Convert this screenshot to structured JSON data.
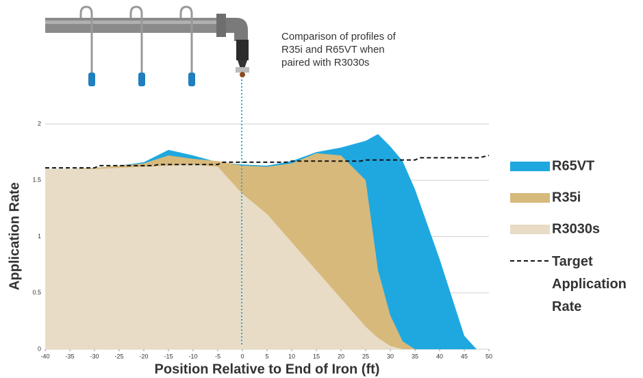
{
  "chart_data": {
    "type": "area",
    "annotation": "Comparison of profiles of R35i and R65VT when paired with R3030s",
    "x_label": "Position Relative to End of Iron (ft)",
    "y_label": "Application Rate",
    "x": [
      -40,
      -35,
      -30,
      -25,
      -20,
      -15,
      -10,
      -5,
      0,
      5,
      10,
      15,
      20,
      25,
      27.5,
      30,
      32.5,
      35,
      40,
      45,
      47.5
    ],
    "series": [
      {
        "name": "R65VT",
        "color": "#1fa8e0",
        "values": [
          1.6,
          1.6,
          1.61,
          1.63,
          1.66,
          1.77,
          1.72,
          1.66,
          1.64,
          1.63,
          1.67,
          1.75,
          1.79,
          1.85,
          1.91,
          1.8,
          1.67,
          1.42,
          0.8,
          0.12,
          0
        ]
      },
      {
        "name": "R35i",
        "color": "#d7b97b",
        "values": [
          1.6,
          1.6,
          1.61,
          1.63,
          1.65,
          1.72,
          1.69,
          1.67,
          1.63,
          1.62,
          1.65,
          1.74,
          1.72,
          1.5,
          0.7,
          0.3,
          0.07,
          0,
          0,
          0,
          0
        ]
      },
      {
        "name": "R3030s",
        "color": "#e8dcc6",
        "values": [
          1.6,
          1.6,
          1.6,
          1.61,
          1.62,
          1.63,
          1.64,
          1.62,
          1.38,
          1.2,
          0.95,
          0.7,
          0.45,
          0.2,
          0.1,
          0.03,
          0,
          0,
          0,
          0,
          0
        ]
      }
    ],
    "target": {
      "name": "Target Application Rate",
      "color": "#111111",
      "x": [
        -40,
        -30,
        -29,
        -18,
        -17,
        -5,
        -4,
        9,
        10,
        24,
        25,
        35,
        36,
        48,
        50
      ],
      "values": [
        1.61,
        1.61,
        1.63,
        1.63,
        1.64,
        1.64,
        1.66,
        1.66,
        1.67,
        1.67,
        1.68,
        1.68,
        1.7,
        1.7,
        1.72
      ]
    },
    "xlim": [
      -40,
      50
    ],
    "xticks": [
      -40,
      -35,
      -30,
      -25,
      -20,
      -15,
      -10,
      -5,
      0,
      5,
      10,
      15,
      20,
      25,
      30,
      35,
      40,
      45,
      50
    ],
    "ylim": [
      0,
      2
    ],
    "yticks": [
      0,
      0.5,
      1,
      1.5,
      2
    ],
    "grid": true
  }
}
